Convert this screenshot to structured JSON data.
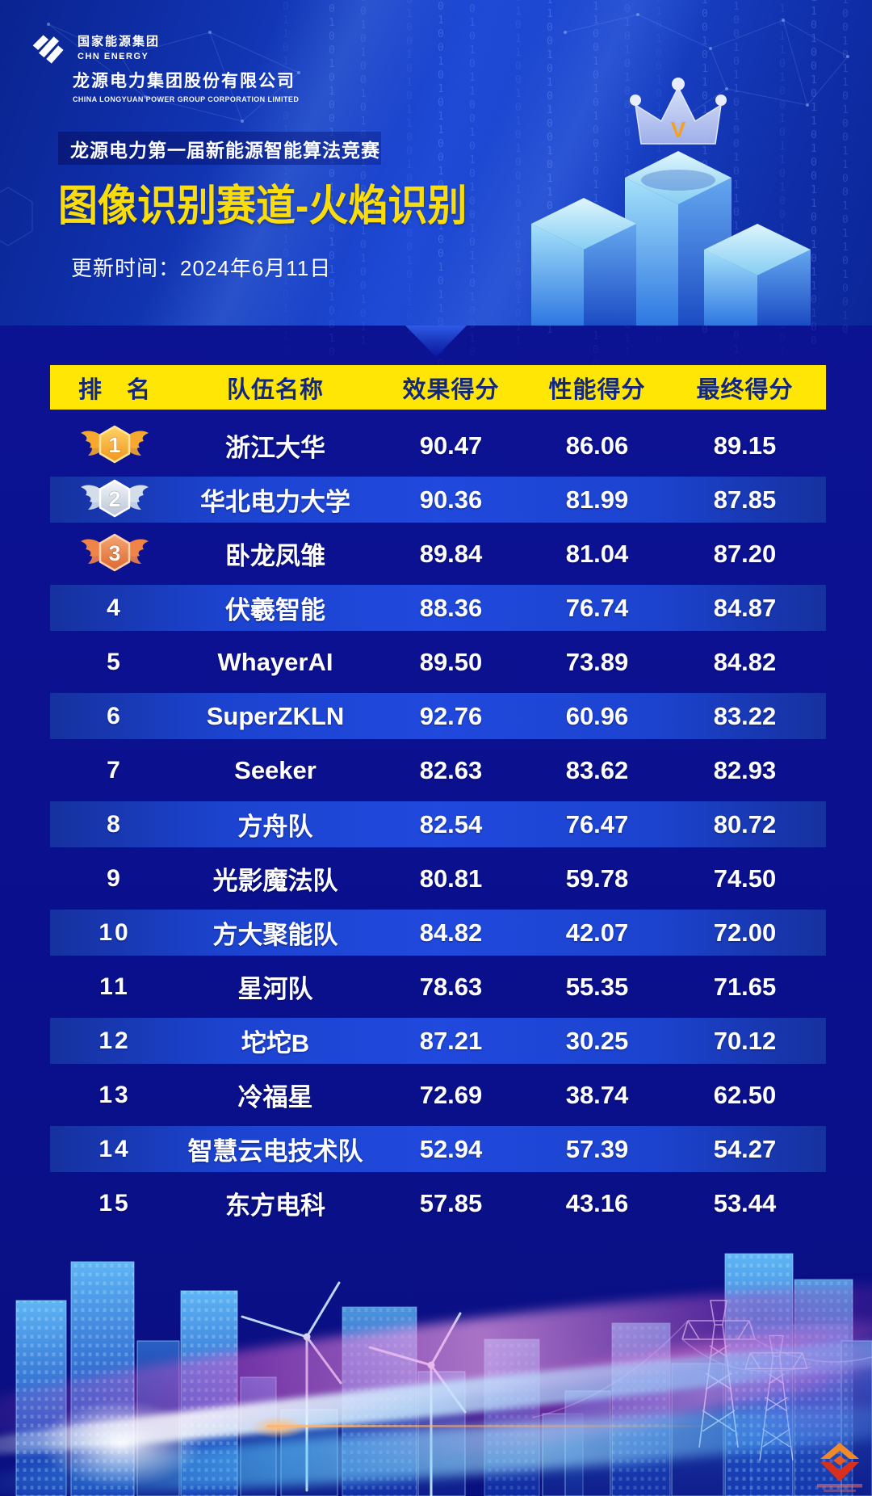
{
  "brand": {
    "group_name_cn": "国家能源集团",
    "group_name_en": "CHN ENERGY",
    "company_name_cn": "龙源电力集团股份有限公司",
    "company_name_en": "CHINA LONGYUAN POWER GROUP CORPORATION LIMITED"
  },
  "hero": {
    "competition_name": "龙源电力第一届新能源智能算法竞赛",
    "track_title": "图像识别赛道-火焰识别",
    "update_time": "更新时间：2024年6月11日",
    "crown_letter": "V"
  },
  "table": {
    "display_headers": [
      "排　名",
      "队伍名称",
      "效果得分",
      "性能得分",
      "最终得分"
    ]
  },
  "chart_data": {
    "type": "table",
    "title": "图像识别赛道-火焰识别",
    "subtitle": "龙源电力第一届新能源智能算法竞赛",
    "update_time": "2024年6月11日",
    "columns": [
      "排名",
      "队伍名称",
      "效果得分",
      "性能得分",
      "最终得分"
    ],
    "rows": [
      [
        1,
        "浙江大华",
        "90.47",
        "86.06",
        "89.15"
      ],
      [
        2,
        "华北电力大学",
        "90.36",
        "81.99",
        "87.85"
      ],
      [
        3,
        "卧龙凤雏",
        "89.84",
        "81.04",
        "87.20"
      ],
      [
        4,
        "伏羲智能",
        "88.36",
        "76.74",
        "84.87"
      ],
      [
        5,
        "WhayerAI",
        "89.50",
        "73.89",
        "84.82"
      ],
      [
        6,
        "SuperZKLN",
        "92.76",
        "60.96",
        "83.22"
      ],
      [
        7,
        "Seeker",
        "82.63",
        "83.62",
        "82.93"
      ],
      [
        8,
        "方舟队",
        "82.54",
        "76.47",
        "80.72"
      ],
      [
        9,
        "光影魔法队",
        "80.81",
        "59.78",
        "74.50"
      ],
      [
        10,
        "方大聚能队",
        "84.82",
        "42.07",
        "72.00"
      ],
      [
        11,
        "星河队",
        "78.63",
        "55.35",
        "71.65"
      ],
      [
        12,
        "坨坨B",
        "87.21",
        "30.25",
        "70.12"
      ],
      [
        13,
        "冷福星",
        "72.69",
        "38.74",
        "62.50"
      ],
      [
        14,
        "智慧云电技术队",
        "52.94",
        "57.39",
        "54.27"
      ],
      [
        15,
        "东方电科",
        "57.85",
        "43.16",
        "53.44"
      ]
    ]
  },
  "colors": {
    "accent_yellow": "#FFE604",
    "title_yellow": "#F8DC0C",
    "header_text_blue": "#13277E",
    "alt_row_blue": "#1C43CF",
    "deep_background": "#0C1292",
    "crown_v_orange": "#F5A01E",
    "medals": [
      {
        "hi": "#FFD467",
        "lo": "#F0951C",
        "wing": "#F7A92F",
        "edge": "#FFE59B",
        "shadow": "#C9761A"
      },
      {
        "hi": "#F4F7FB",
        "lo": "#B9C4D4",
        "wing": "#D3DEEA",
        "edge": "#FFFFFF",
        "shadow": "#93A2B6"
      },
      {
        "hi": "#F5A673",
        "lo": "#DD6830",
        "wing": "#EF8449",
        "edge": "#FFD0AC",
        "shadow": "#B05020"
      }
    ]
  },
  "decor": {
    "binary_pattern": "0110100101001010110010101001011010010110100110010110100101"
  }
}
